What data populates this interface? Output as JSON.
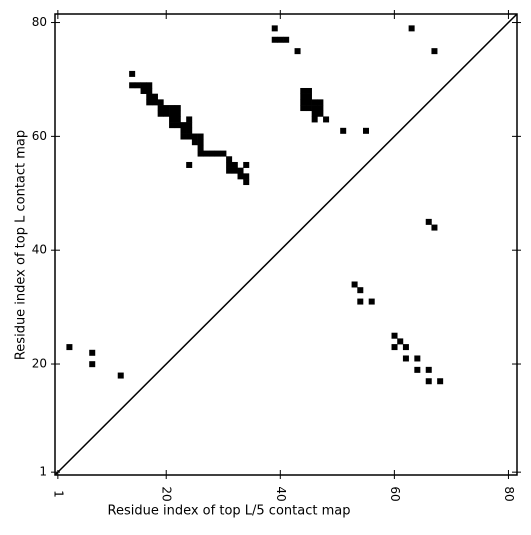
{
  "chart_data": {
    "type": "scatter",
    "marker": "square",
    "color": "#000000",
    "xlabel": "Residue index of top L/5 contact map",
    "ylabel": "Residue index of top L contact map",
    "xlim": [
      0.5,
      81.5
    ],
    "ylim": [
      0.5,
      81.5
    ],
    "xticks": [
      1,
      20,
      40,
      60,
      80
    ],
    "yticks": [
      1,
      20,
      40,
      60,
      80
    ],
    "diagonal": true,
    "x": [
      3,
      7,
      7,
      12,
      39,
      39,
      40,
      41,
      43,
      63,
      67,
      14,
      14,
      15,
      16,
      17,
      16,
      17,
      17,
      18,
      17,
      18,
      19,
      19,
      20,
      21,
      22,
      19,
      20,
      21,
      22,
      21,
      22,
      24,
      21,
      22,
      23,
      24,
      23,
      24,
      23,
      24,
      25,
      26,
      25,
      26,
      26,
      26,
      27,
      28,
      29,
      30,
      31,
      24,
      31,
      32,
      34,
      31,
      32,
      33,
      33,
      34,
      34,
      44,
      45,
      44,
      45,
      44,
      45,
      46,
      47,
      44,
      45,
      46,
      47,
      46,
      47,
      46,
      48,
      51,
      55,
      66,
      67,
      53,
      54,
      54,
      56,
      60,
      61,
      60,
      62,
      62,
      64,
      64,
      66,
      66,
      68
    ],
    "y": [
      23,
      22,
      20,
      18,
      79,
      77,
      77,
      77,
      75,
      79,
      75,
      71,
      69,
      69,
      69,
      69,
      68,
      68,
      67,
      67,
      66,
      66,
      66,
      65,
      65,
      65,
      65,
      64,
      64,
      64,
      64,
      63,
      63,
      63,
      62,
      62,
      62,
      62,
      61,
      61,
      60,
      60,
      60,
      60,
      59,
      59,
      58,
      57,
      57,
      57,
      57,
      57,
      56,
      55,
      55,
      55,
      55,
      54,
      54,
      54,
      53,
      53,
      52,
      68,
      68,
      67,
      67,
      66,
      66,
      66,
      66,
      65,
      65,
      65,
      65,
      64,
      64,
      63,
      63,
      61,
      61,
      45,
      44,
      34,
      33,
      31,
      31,
      25,
      24,
      23,
      23,
      21,
      21,
      19,
      19,
      17,
      17
    ]
  }
}
